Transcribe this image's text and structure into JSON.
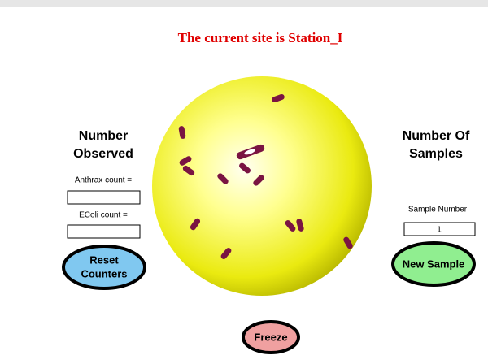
{
  "header": {
    "title": "The current site is Station_I"
  },
  "left_panel": {
    "heading": [
      "Number",
      "Observed"
    ],
    "anthrax_label": "Anthrax count =",
    "ecoli_label": "EColi count =",
    "reset_button": [
      "Reset",
      "Counters"
    ]
  },
  "right_panel": {
    "heading": [
      "Number Of",
      "Samples"
    ],
    "sample_label": "Sample Number",
    "sample_value": "1",
    "new_sample_button": "New Sample"
  },
  "freeze_button": "Freeze"
}
